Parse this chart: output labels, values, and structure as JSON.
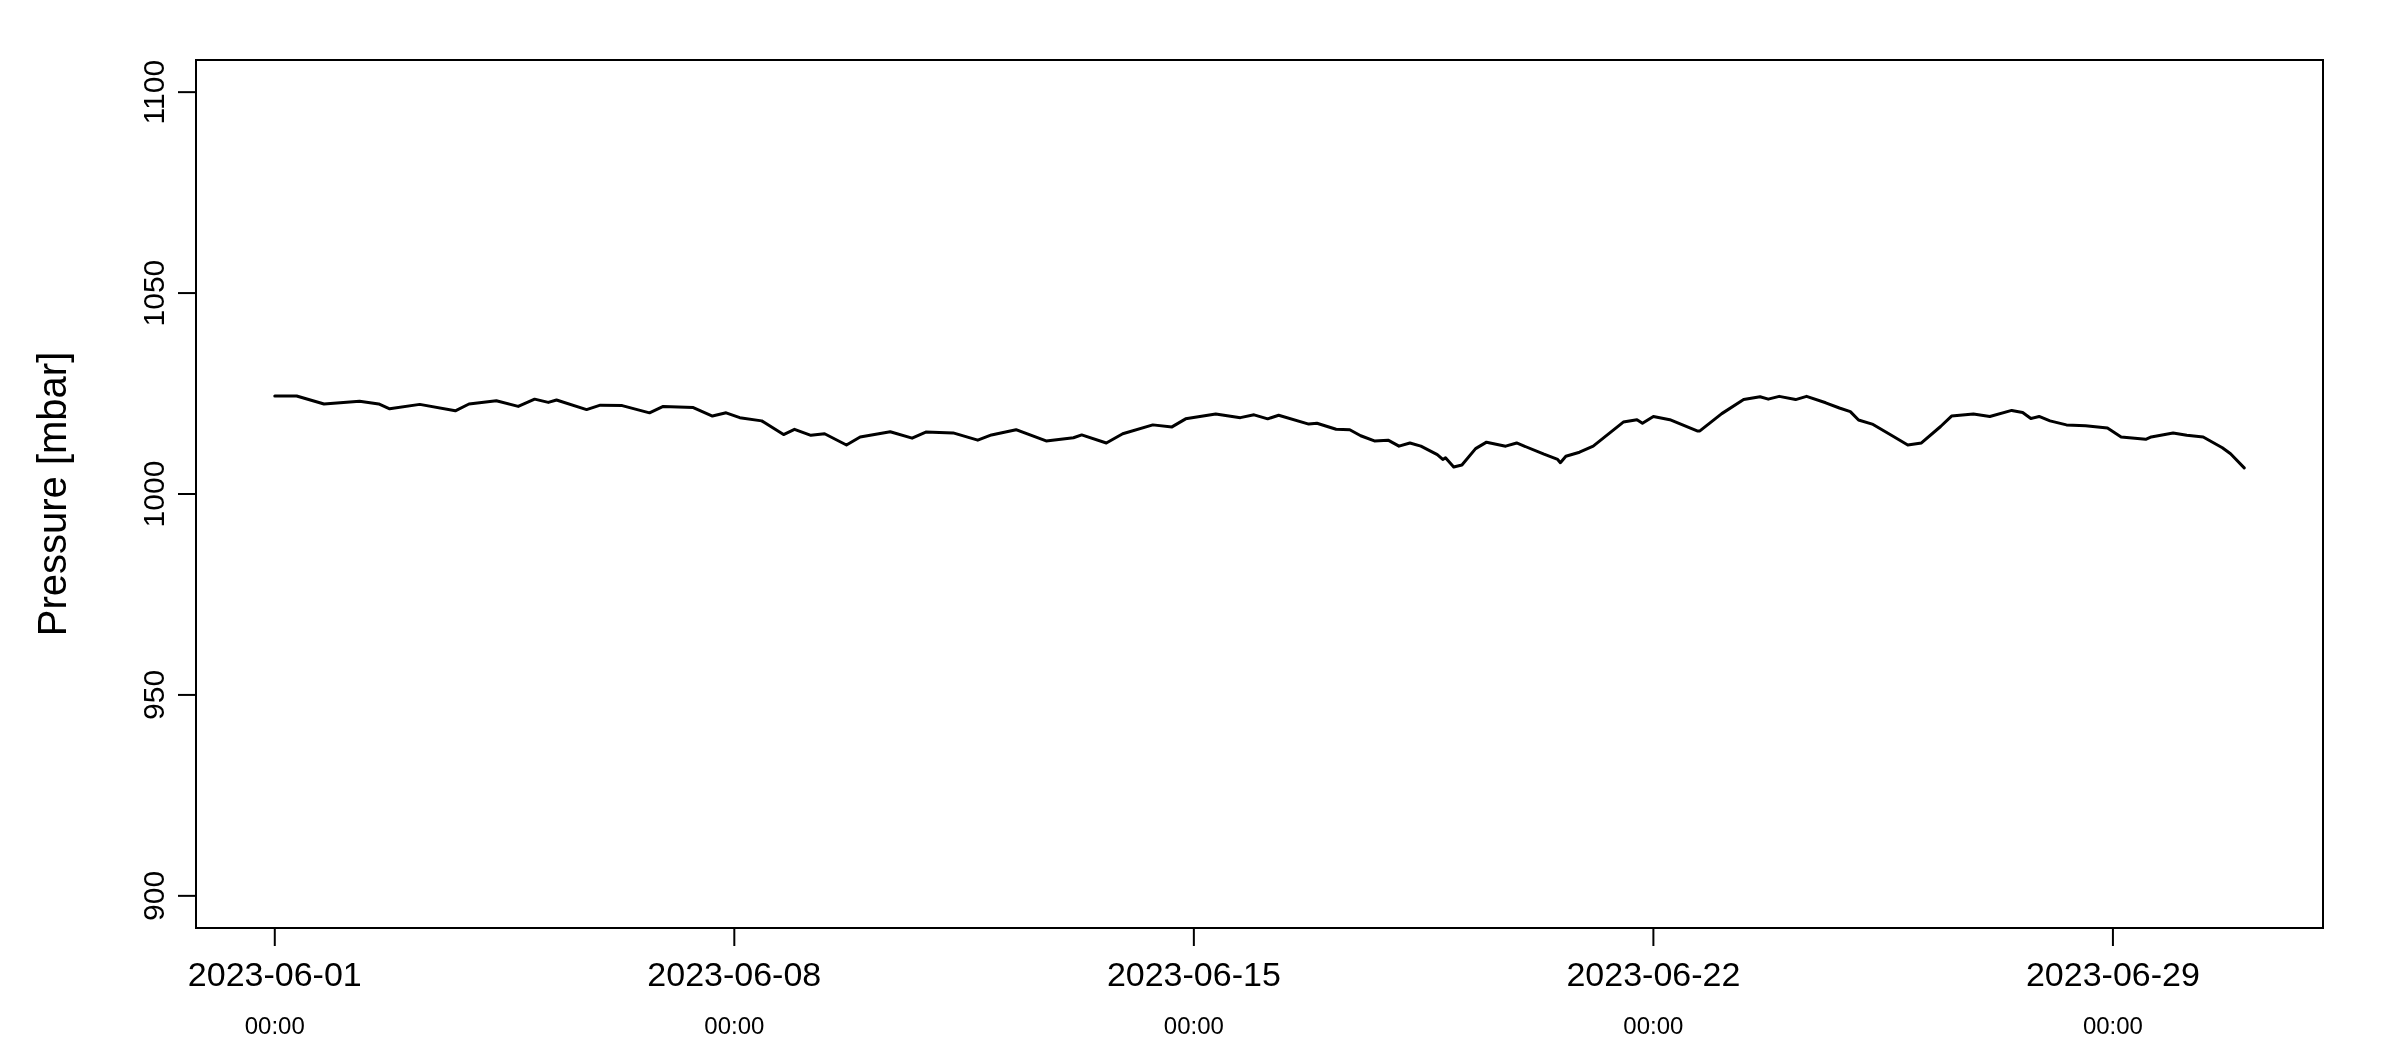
{
  "chart_data": {
    "type": "line",
    "ylabel": "Pressure [mbar]",
    "ylim": [
      892,
      1108
    ],
    "yticks": [
      900,
      950,
      1000,
      1050,
      1100
    ],
    "xlim": [
      "2023-05-30T19:12",
      "2023-07-02T04:48"
    ],
    "xticks": [
      {
        "value": "2023-06-01",
        "label": "2023-06-01\n00:00"
      },
      {
        "value": "2023-06-08",
        "label": "2023-06-08\n00:00"
      },
      {
        "value": "2023-06-15",
        "label": "2023-06-15\n00:00"
      },
      {
        "value": "2023-06-22",
        "label": "2023-06-22\n00:00"
      },
      {
        "value": "2023-06-29",
        "label": "2023-06-29\n00:00"
      }
    ],
    "grid": false,
    "marker": "none",
    "line_style": "solid",
    "x": [
      "2023-06-01T00:00",
      "2023-06-01T08:00",
      "2023-06-01T18:00",
      "2023-06-02T07:00",
      "2023-06-02T14:00",
      "2023-06-02T18:00",
      "2023-06-03T05:00",
      "2023-06-03T18:00",
      "2023-06-03T23:00",
      "2023-06-04T09:00",
      "2023-06-04T17:00",
      "2023-06-04T23:00",
      "2023-06-05T04:00",
      "2023-06-05T07:00",
      "2023-06-05T18:00",
      "2023-06-05T23:00",
      "2023-06-06T07:00",
      "2023-06-06T17:00",
      "2023-06-06T22:00",
      "2023-06-07T09:00",
      "2023-06-07T16:00",
      "2023-06-07T21:00",
      "2023-06-08T02:00",
      "2023-06-08T10:00",
      "2023-06-08T18:00",
      "2023-06-08T22:00",
      "2023-06-09T04:00",
      "2023-06-09T09:00",
      "2023-06-09T17:00",
      "2023-06-09T22:00",
      "2023-06-10T09:00",
      "2023-06-10T17:00",
      "2023-06-10T22:00",
      "2023-06-11T08:00",
      "2023-06-11T17:00",
      "2023-06-11T22:00",
      "2023-06-12T07:00",
      "2023-06-12T18:00",
      "2023-06-13T04:00",
      "2023-06-13T07:00",
      "2023-06-13T16:00",
      "2023-06-13T22:00",
      "2023-06-14T09:00",
      "2023-06-14T16:00",
      "2023-06-14T21:00",
      "2023-06-15T08:00",
      "2023-06-15T17:00",
      "2023-06-15T22:00",
      "2023-06-16T03:00",
      "2023-06-16T07:00",
      "2023-06-16T18:00",
      "2023-06-16T21:00",
      "2023-06-17T04:00",
      "2023-06-17T09:00",
      "2023-06-17T13:00",
      "2023-06-17T18:00",
      "2023-06-17T23:00",
      "2023-06-18T03:00",
      "2023-06-18T07:00",
      "2023-06-18T11:00",
      "2023-06-18T17:00",
      "2023-06-18T19:00",
      "2023-06-18T20:00",
      "2023-06-18T23:00",
      "2023-06-19T02:00",
      "2023-06-19T07:00",
      "2023-06-19T11:00",
      "2023-06-19T18:00",
      "2023-06-19T22:00",
      "2023-06-20T08:00",
      "2023-06-20T13:00",
      "2023-06-20T14:00",
      "2023-06-20T16:00",
      "2023-06-20T21:00",
      "2023-06-21T02:00",
      "2023-06-21T13:00",
      "2023-06-21T18:00",
      "2023-06-21T20:00",
      "2023-06-22T00:00",
      "2023-06-22T06:00",
      "2023-06-22T16:00",
      "2023-06-22T17:00",
      "2023-06-23T01:00",
      "2023-06-23T09:00",
      "2023-06-23T15:00",
      "2023-06-23T18:00",
      "2023-06-23T22:00",
      "2023-06-24T04:00",
      "2023-06-24T08:00",
      "2023-06-24T15:00",
      "2023-06-24T20:00",
      "2023-06-25T00:00",
      "2023-06-25T03:00",
      "2023-06-25T08:00",
      "2023-06-25T15:00",
      "2023-06-25T21:00",
      "2023-06-26T02:00",
      "2023-06-26T09:00",
      "2023-06-26T13:00",
      "2023-06-26T21:00",
      "2023-06-27T03:00",
      "2023-06-27T11:00",
      "2023-06-27T15:00",
      "2023-06-27T18:00",
      "2023-06-27T21:00",
      "2023-06-28T01:00",
      "2023-06-28T07:00",
      "2023-06-28T14:00",
      "2023-06-28T22:00",
      "2023-06-29T03:00",
      "2023-06-29T12:00",
      "2023-06-29T14:00",
      "2023-06-29T22:00",
      "2023-06-30T03:00",
      "2023-06-30T09:00",
      "2023-06-30T16:00",
      "2023-06-30T19:00",
      "2023-07-01T00:00"
    ],
    "series": [
      {
        "color": "#000000",
        "values": [
          1024.4,
          1024.4,
          1022.4,
          1023.1,
          1022.4,
          1021.2,
          1022.3,
          1020.7,
          1022.4,
          1023.2,
          1021.8,
          1023.6,
          1022.8,
          1023.4,
          1021.0,
          1022.1,
          1022.0,
          1020.2,
          1021.8,
          1021.5,
          1019.4,
          1020.2,
          1019.0,
          1018.2,
          1014.8,
          1016.1,
          1014.6,
          1015.0,
          1012.2,
          1014.2,
          1015.5,
          1013.9,
          1015.4,
          1015.2,
          1013.4,
          1014.7,
          1016.0,
          1013.2,
          1014.0,
          1014.7,
          1012.7,
          1015.0,
          1017.2,
          1016.7,
          1018.7,
          1019.9,
          1019.0,
          1019.7,
          1018.7,
          1019.6,
          1017.4,
          1017.6,
          1016.1,
          1016.0,
          1014.5,
          1013.2,
          1013.4,
          1011.9,
          1012.7,
          1011.9,
          1009.8,
          1008.6,
          1009.0,
          1006.7,
          1007.2,
          1011.3,
          1012.9,
          1011.9,
          1012.7,
          1009.9,
          1008.6,
          1007.8,
          1009.4,
          1010.4,
          1011.9,
          1017.9,
          1018.5,
          1017.6,
          1019.3,
          1018.5,
          1015.7,
          1015.7,
          1020.0,
          1023.5,
          1024.2,
          1023.6,
          1024.3,
          1023.5,
          1024.3,
          1022.7,
          1021.4,
          1020.5,
          1018.4,
          1017.4,
          1014.6,
          1012.2,
          1012.7,
          1016.8,
          1019.4,
          1019.9,
          1019.3,
          1020.8,
          1020.3,
          1018.8,
          1019.3,
          1018.2,
          1017.2,
          1017.0,
          1016.4,
          1014.2,
          1013.6,
          1014.2,
          1015.2,
          1014.6,
          1014.2,
          1011.5,
          1010.0,
          1006.5
        ]
      }
    ]
  }
}
